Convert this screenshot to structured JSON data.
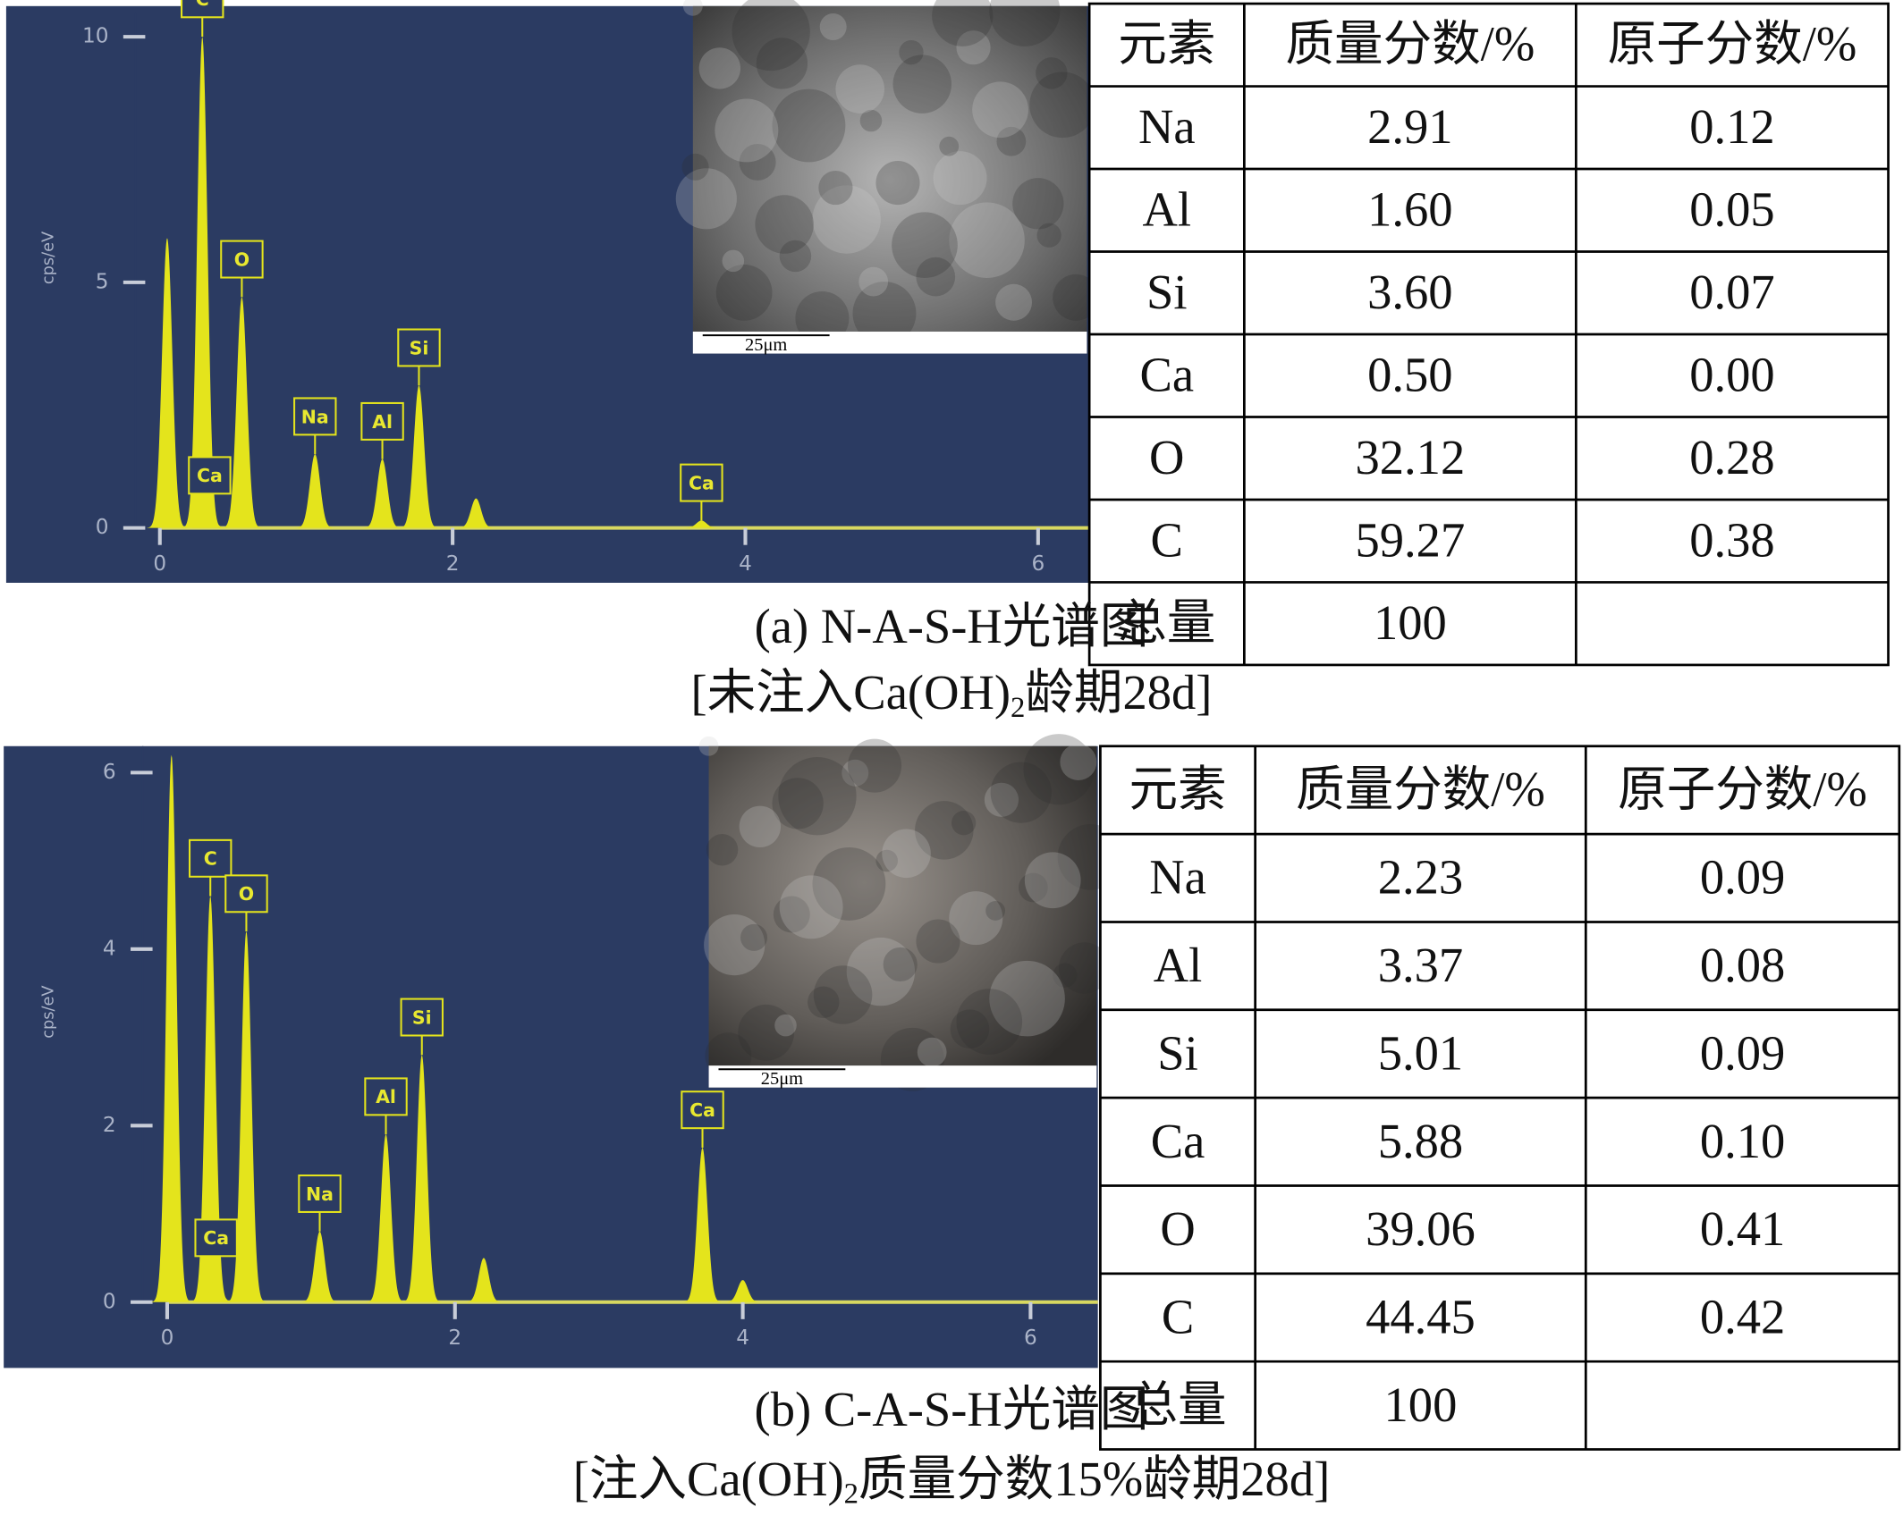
{
  "panels": [
    {
      "spectrum": {
        "type": "spectrum",
        "ylabel": "cps/eV",
        "xlim": [
          0,
          6.4
        ],
        "ylim": [
          0,
          10.5
        ],
        "xticks": [
          0,
          2,
          4,
          6
        ],
        "yticks": [
          0,
          5,
          10
        ],
        "peaks": [
          {
            "label": null,
            "x": 0.05,
            "y": 5.9
          },
          {
            "label": "C",
            "x": 0.29,
            "y": 10
          },
          {
            "label": "Ca",
            "x": 0.34,
            "y": 0.3
          },
          {
            "label": "O",
            "x": 0.56,
            "y": 4.7
          },
          {
            "label": "Na",
            "x": 1.06,
            "y": 1.5
          },
          {
            "label": "Al",
            "x": 1.52,
            "y": 1.4
          },
          {
            "label": "Si",
            "x": 1.77,
            "y": 2.9
          },
          {
            "label": null,
            "x": 2.16,
            "y": 0.6
          },
          {
            "label": "Ca",
            "x": 3.7,
            "y": 0.15
          }
        ]
      },
      "image": {
        "scale_label": "25μm"
      },
      "table": {
        "header": [
          "元素",
          "质量分数/%",
          "原子分数/%"
        ],
        "rows": [
          [
            "Na",
            "2.91",
            "0.12"
          ],
          [
            "Al",
            "1.60",
            "0.05"
          ],
          [
            "Si",
            "3.60",
            "0.07"
          ],
          [
            "Ca",
            "0.50",
            "0.00"
          ],
          [
            "O",
            "32.12",
            "0.28"
          ],
          [
            "C",
            "59.27",
            "0.38"
          ],
          [
            "总量",
            "100"
          ]
        ]
      },
      "caption": [
        "(a) N-A-S-H光谱图",
        [
          "[未注入Ca(OH)",
          "2",
          "龄期28d]"
        ]
      ]
    },
    {
      "spectrum": {
        "type": "spectrum",
        "ylabel": "cps/eV",
        "xlim": [
          0,
          6.4
        ],
        "ylim": [
          0,
          6.3
        ],
        "xticks": [
          0,
          2,
          4,
          6
        ],
        "yticks": [
          0,
          2,
          4,
          6
        ],
        "peaks": [
          {
            "label": null,
            "x": 0.03,
            "y": 6.2
          },
          {
            "label": "C",
            "x": 0.3,
            "y": 4.6
          },
          {
            "label": "Ca",
            "x": 0.34,
            "y": 0.3
          },
          {
            "label": "O",
            "x": 0.55,
            "y": 4.2
          },
          {
            "label": "Na",
            "x": 1.06,
            "y": 0.8
          },
          {
            "label": "Al",
            "x": 1.52,
            "y": 1.9
          },
          {
            "label": "Si",
            "x": 1.77,
            "y": 2.8
          },
          {
            "label": null,
            "x": 2.2,
            "y": 0.5
          },
          {
            "label": "Ca",
            "x": 3.72,
            "y": 1.75
          },
          {
            "label": null,
            "x": 4.0,
            "y": 0.25
          }
        ]
      },
      "image": {
        "scale_label": "25μm"
      },
      "table": {
        "header": [
          "元素",
          "质量分数/%",
          "原子分数/%"
        ],
        "rows": [
          [
            "Na",
            "2.23",
            "0.09"
          ],
          [
            "Al",
            "3.37",
            "0.08"
          ],
          [
            "Si",
            "5.01",
            "0.09"
          ],
          [
            "Ca",
            "5.88",
            "0.10"
          ],
          [
            "O",
            "39.06",
            "0.41"
          ],
          [
            "C",
            "44.45",
            "0.42"
          ],
          [
            "总量",
            "100"
          ]
        ]
      },
      "caption": [
        "(b) C-A-S-H光谱图",
        [
          "[注入Ca(OH)",
          "2",
          "质量分数15%龄期28d]"
        ]
      ]
    }
  ]
}
